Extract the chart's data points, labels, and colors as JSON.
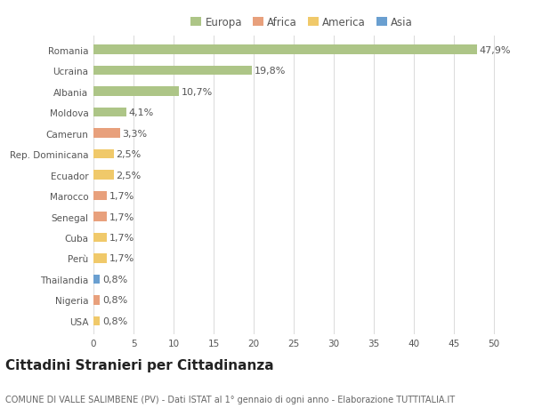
{
  "categories": [
    "Romania",
    "Ucraina",
    "Albania",
    "Moldova",
    "Camerun",
    "Rep. Dominicana",
    "Ecuador",
    "Marocco",
    "Senegal",
    "Cuba",
    "Perù",
    "Thailandia",
    "Nigeria",
    "USA"
  ],
  "values": [
    47.9,
    19.8,
    10.7,
    4.1,
    3.3,
    2.5,
    2.5,
    1.7,
    1.7,
    1.7,
    1.7,
    0.8,
    0.8,
    0.8
  ],
  "labels": [
    "47,9%",
    "19,8%",
    "10,7%",
    "4,1%",
    "3,3%",
    "2,5%",
    "2,5%",
    "1,7%",
    "1,7%",
    "1,7%",
    "1,7%",
    "0,8%",
    "0,8%",
    "0,8%"
  ],
  "continents": [
    "Europa",
    "Europa",
    "Europa",
    "Europa",
    "Africa",
    "America",
    "America",
    "Africa",
    "Africa",
    "America",
    "America",
    "Asia",
    "Africa",
    "America"
  ],
  "colors": {
    "Europa": "#adc587",
    "Africa": "#e8a07c",
    "America": "#f0c96a",
    "Asia": "#6a9fd0"
  },
  "legend_order": [
    "Europa",
    "Africa",
    "America",
    "Asia"
  ],
  "title": "Cittadini Stranieri per Cittadinanza",
  "subtitle": "COMUNE DI VALLE SALIMBENE (PV) - Dati ISTAT al 1° gennaio di ogni anno - Elaborazione TUTTITALIA.IT",
  "xlim": [
    0,
    52
  ],
  "xticks": [
    0,
    5,
    10,
    15,
    20,
    25,
    30,
    35,
    40,
    45,
    50
  ],
  "bg_color": "#ffffff",
  "grid_color": "#dddddd",
  "bar_height": 0.45,
  "label_fontsize": 8,
  "title_fontsize": 11,
  "subtitle_fontsize": 7,
  "tick_fontsize": 7.5,
  "legend_fontsize": 8.5
}
